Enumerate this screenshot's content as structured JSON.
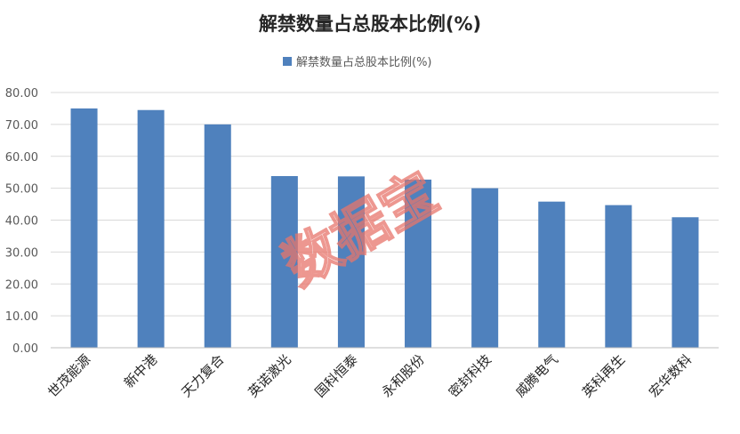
{
  "watermark_text": "数据宝",
  "colors": {
    "bar": "#4f81bd",
    "watermark": "#e8756b"
  },
  "chart_data": {
    "type": "bar",
    "title": "解禁数量占总股本比例(%)",
    "legend_position": "top",
    "grid": true,
    "categories": [
      "世茂能源",
      "新中港",
      "天力复合",
      "英诺激光",
      "国科恒泰",
      "永和股份",
      "密封科技",
      "威腾电气",
      "英科再生",
      "宏华数科"
    ],
    "series": [
      {
        "name": "解禁数量占总股本比例(%)",
        "values": [
          75.0,
          74.5,
          70.0,
          53.8,
          53.7,
          52.7,
          50.0,
          45.8,
          44.7,
          40.9
        ]
      }
    ],
    "y_ticks": [
      "0.00",
      "10.00",
      "20.00",
      "30.00",
      "40.00",
      "50.00",
      "60.00",
      "70.00",
      "80.00"
    ],
    "ylim": [
      0,
      80
    ]
  }
}
